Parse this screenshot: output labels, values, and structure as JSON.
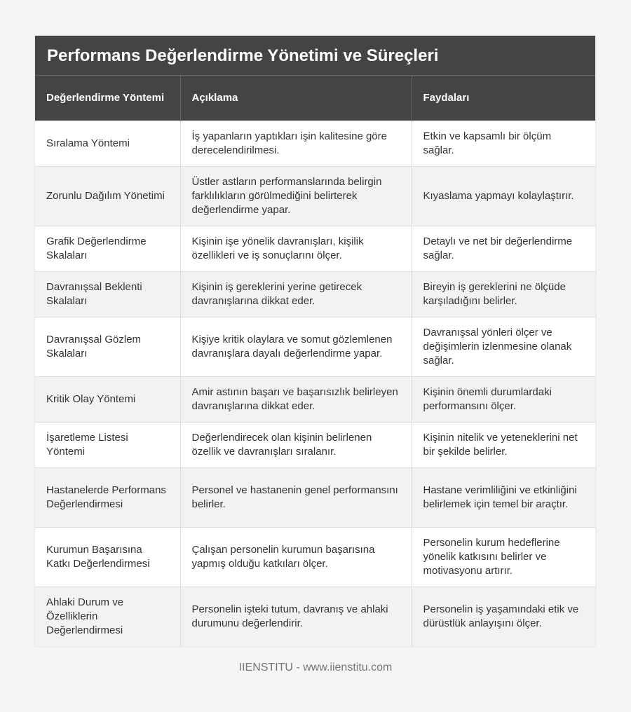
{
  "title": "Performans Değerlendirme Yönetimi ve Süreçleri",
  "columns": [
    "Değerlendirme Yöntemi",
    "Açıklama",
    "Faydaları"
  ],
  "rows": [
    [
      "Sıralama Yöntemi",
      "İş yapanların yaptıkları işin kalitesine göre derecelendirilmesi.",
      "Etkin ve kapsamlı bir ölçüm sağlar."
    ],
    [
      "Zorunlu Dağılım Yönetimi",
      "Üstler astların performanslarında belirgin farklılıkların görülmediğini belirterek değerlendirme yapar.",
      "Kıyaslama yapmayı kolaylaştırır."
    ],
    [
      "Grafik Değerlendirme Skalaları",
      "Kişinin işe yönelik davranışları, kişilik özellikleri ve iş sonuçlarını ölçer.",
      "Detaylı ve net bir değerlendirme sağlar."
    ],
    [
      "Davranışsal Beklenti Skalaları",
      "Kişinin iş gereklerini yerine getirecek davranışlarına dikkat eder.",
      "Bireyin iş gereklerini ne ölçüde karşıladığını belirler."
    ],
    [
      "Davranışsal Gözlem Skalaları",
      "Kişiye kritik olaylara ve somut gözlemlenen davranışlara dayalı değerlendirme yapar.",
      "Davranışsal yönleri ölçer ve değişimlerin izlenmesine olanak sağlar."
    ],
    [
      "Kritik Olay Yöntemi",
      "Amir astının başarı ve başarısızlık belirleyen davranışlarına dikkat eder.",
      "Kişinin önemli durumlardaki performansını ölçer."
    ],
    [
      "İşaretleme Listesi Yöntemi",
      "Değerlendirecek olan kişinin belirlenen özellik ve davranışları sıralanır.",
      "Kişinin nitelik ve yeteneklerini net bir şekilde belirler."
    ],
    [
      "Hastanelerde Performans Değerlendirmesi",
      "Personel ve hastanenin genel performansını belirler.",
      "Hastane verimliliğini ve etkinliğini belirlemek için temel bir araçtır."
    ],
    [
      "Kurumun Başarısına Katkı Değerlendirmesi",
      "Çalışan personelin kurumun başarısına yapmış olduğu katkıları ölçer.",
      "Personelin kurum hedeflerine yönelik katkısını belirler ve motivasyonu artırır."
    ],
    [
      "Ahlaki Durum ve Özelliklerin Değerlendirmesi",
      "Personelin işteki tutum, davranış ve ahlaki durumunu değerlendirir.",
      "Personelin iş yaşamındaki etik ve dürüstlük anlayışını ölçer."
    ]
  ],
  "footer": "IIENSTITU - www.iienstitu.com",
  "colors": {
    "header_bg": "#444444",
    "row_alt_bg": "#f2f2f2"
  }
}
